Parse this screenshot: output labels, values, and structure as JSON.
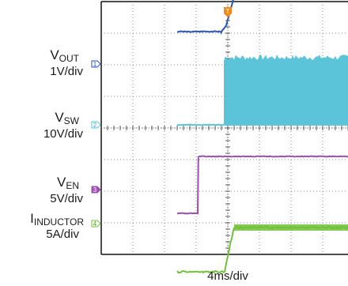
{
  "chart_data": {
    "type": "line",
    "title": "",
    "xlabel": "4ms/div",
    "trigger_marker": "T",
    "grid": true,
    "divisions": {
      "x": 10,
      "y": 8
    },
    "series": [
      {
        "id": "1",
        "name_main": "V",
        "name_sub": "OUT",
        "scale": "1V/div",
        "color": "#2b55b8",
        "trace": [
          [
            -1.6,
            3.05
          ],
          [
            -0.2,
            3.05
          ],
          [
            -0.05,
            3.25
          ],
          [
            0.35,
            4.7
          ],
          [
            0.75,
            5.7
          ],
          [
            1.2,
            5.82
          ],
          [
            7.0,
            5.82
          ]
        ]
      },
      {
        "id": "2",
        "name_main": "V",
        "name_sub": "SW",
        "scale": "10V/div",
        "color": "#5bc4d9",
        "off_level": 0.1,
        "on_level": 2.15,
        "start": -0.1,
        "ripple": 0.35,
        "trace": [
          [
            -1.6,
            0.1
          ],
          [
            -0.1,
            0.1
          ]
        ]
      },
      {
        "id": "3",
        "name_main": "V",
        "name_sub": "EN",
        "scale": "5V/div",
        "color": "#9b4fb0",
        "trace": [
          [
            -1.6,
            -2.7
          ],
          [
            -0.95,
            -2.7
          ],
          [
            -0.93,
            -0.9
          ],
          [
            7.0,
            -0.9
          ]
        ]
      },
      {
        "id": "4",
        "name_main": "I",
        "name_sub": "INDUCTOR",
        "scale": "5A/div",
        "color": "#6fc23a",
        "trace": [
          [
            -1.6,
            -4.55
          ],
          [
            -0.1,
            -4.55
          ],
          [
            0.05,
            -3.8
          ],
          [
            0.2,
            -3.15
          ],
          [
            7.0,
            -3.15
          ]
        ]
      }
    ]
  }
}
